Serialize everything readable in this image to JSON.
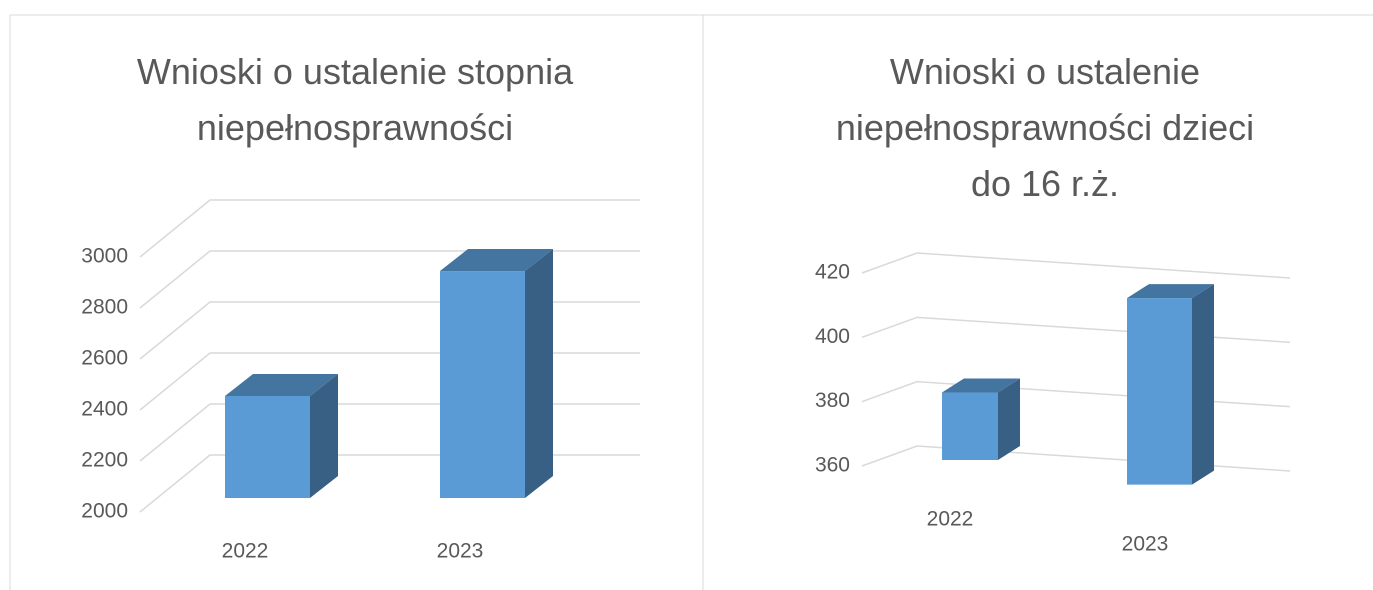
{
  "chart_data": [
    {
      "type": "bar3d",
      "title": "Wnioski o ustalenie stopnia niepełnosprawności",
      "categories": [
        "2022",
        "2023"
      ],
      "values": [
        2400,
        2890
      ],
      "color": "#5b9bd5",
      "ylim": [
        2000,
        3000
      ],
      "yticks": [
        2000,
        2200,
        2400,
        2600,
        2800,
        3000
      ],
      "grid": true
    },
    {
      "type": "bar3d",
      "title": "Wnioski o ustalenie niepełnosprawności dzieci do 16 r.ż.",
      "categories": [
        "2022",
        "2023"
      ],
      "values": [
        381,
        418
      ],
      "color": "#5b9bd5",
      "ylim": [
        360,
        420
      ],
      "yticks": [
        360,
        380,
        400,
        420
      ],
      "grid": true
    }
  ]
}
